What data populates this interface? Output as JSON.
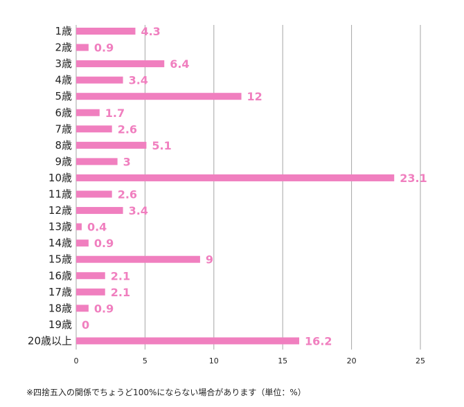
{
  "chart_data": {
    "type": "bar",
    "orientation": "horizontal",
    "categories": [
      "1歳",
      "2歳",
      "3歳",
      "4歳",
      "5歳",
      "6歳",
      "7歳",
      "8歳",
      "9歳",
      "10歳",
      "11歳",
      "12歳",
      "13歳",
      "14歳",
      "15歳",
      "16歳",
      "17歳",
      "18歳",
      "19歳",
      "20歳以上"
    ],
    "values": [
      4.3,
      0.9,
      6.4,
      3.4,
      12,
      1.7,
      2.6,
      5.1,
      3,
      23.1,
      2.6,
      3.4,
      0.4,
      0.9,
      9,
      2.1,
      2.1,
      0.9,
      0,
      16.2
    ],
    "data_labels": [
      "4.3",
      "0.9",
      "6.4",
      "3.4",
      "12",
      "1.7",
      "2.6",
      "5.1",
      "3",
      "23.1",
      "2.6",
      "3.4",
      "0.4",
      "0.9",
      "9",
      "2.1",
      "2.1",
      "0.9",
      "0",
      "16.2"
    ],
    "xlim": [
      0,
      25
    ],
    "x_ticks": [
      "0",
      "5",
      "10",
      "15",
      "20",
      "25"
    ],
    "grid": "vertical",
    "legend": "none",
    "bar_color": "#f07fbf",
    "label_color": "#f07fbf",
    "grid_color": "#a6a6a6",
    "title": "",
    "xlabel": "",
    "ylabel": ""
  },
  "footnote": "※四捨五入の関係でちょうど100%にならない場合があります（単位：%）"
}
